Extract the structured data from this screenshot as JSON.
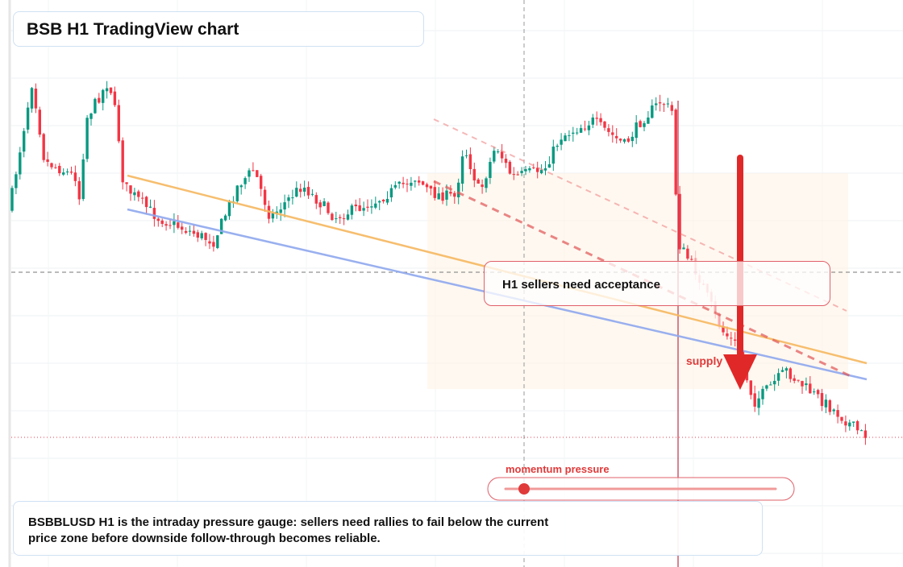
{
  "header": {
    "title": "BSB H1 TradingView chart"
  },
  "callout": {
    "text": "H1 sellers need acceptance"
  },
  "zone_label": "supply",
  "gauge": {
    "label": "momentum pressure"
  },
  "footer": {
    "lines": [
      "BSBBLUSD H1 is the intraday pressure gauge: sellers need rallies to fail below the current",
      "price zone before downside follow-through becomes reliable."
    ]
  }
}
